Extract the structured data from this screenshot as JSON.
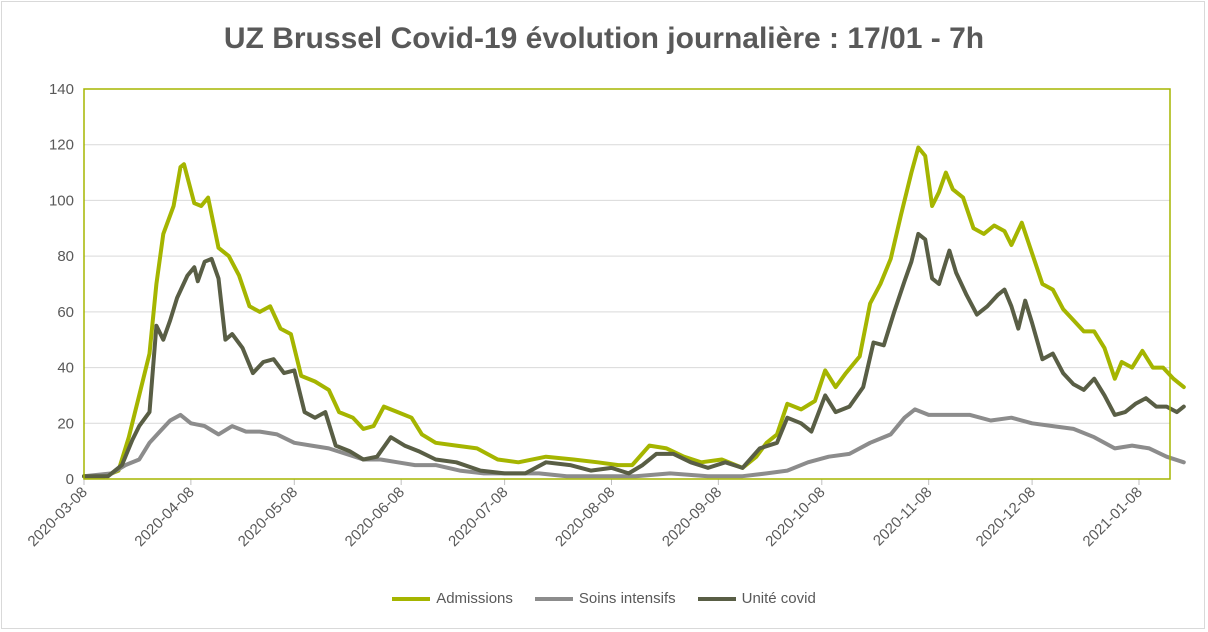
{
  "chart_data": {
    "type": "line",
    "title": "UZ Brussel Covid-19 évolution journalière : 17/01 - 7h",
    "xlabel": "",
    "ylabel": "",
    "ylim": [
      0,
      140
    ],
    "yticks": [
      "0",
      "20",
      "40",
      "60",
      "80",
      "100",
      "120",
      "140"
    ],
    "x_range": [
      "2020-03-08",
      "2021-01-17"
    ],
    "x_ticks": [
      "2020-03-08",
      "2020-04-08",
      "2020-05-08",
      "2020-06-08",
      "2020-07-08",
      "2020-08-08",
      "2020-09-08",
      "2020-10-08",
      "2020-11-08",
      "2020-12-08",
      "2021-01-08"
    ],
    "grid": "horizontal",
    "legend_position": "bottom",
    "colors": {
      "plot_border": "#a5b500",
      "grid": "#d9d9d9"
    },
    "series": [
      {
        "name": "Admissions",
        "color": "#a5b500",
        "points": [
          [
            "2020-03-08",
            1
          ],
          [
            "2020-03-14",
            1
          ],
          [
            "2020-03-18",
            3
          ],
          [
            "2020-03-21",
            15
          ],
          [
            "2020-03-24",
            30
          ],
          [
            "2020-03-27",
            45
          ],
          [
            "2020-03-29",
            70
          ],
          [
            "2020-03-31",
            88
          ],
          [
            "2020-04-03",
            98
          ],
          [
            "2020-04-05",
            112
          ],
          [
            "2020-04-06",
            113
          ],
          [
            "2020-04-09",
            99
          ],
          [
            "2020-04-11",
            98
          ],
          [
            "2020-04-13",
            101
          ],
          [
            "2020-04-16",
            83
          ],
          [
            "2020-04-19",
            80
          ],
          [
            "2020-04-22",
            73
          ],
          [
            "2020-04-25",
            62
          ],
          [
            "2020-04-28",
            60
          ],
          [
            "2020-05-01",
            62
          ],
          [
            "2020-05-04",
            54
          ],
          [
            "2020-05-07",
            52
          ],
          [
            "2020-05-10",
            37
          ],
          [
            "2020-05-14",
            35
          ],
          [
            "2020-05-18",
            32
          ],
          [
            "2020-05-21",
            24
          ],
          [
            "2020-05-25",
            22
          ],
          [
            "2020-05-28",
            18
          ],
          [
            "2020-05-31",
            19
          ],
          [
            "2020-06-03",
            26
          ],
          [
            "2020-06-07",
            24
          ],
          [
            "2020-06-11",
            22
          ],
          [
            "2020-06-14",
            16
          ],
          [
            "2020-06-18",
            13
          ],
          [
            "2020-06-24",
            12
          ],
          [
            "2020-06-30",
            11
          ],
          [
            "2020-07-06",
            7
          ],
          [
            "2020-07-12",
            6
          ],
          [
            "2020-07-20",
            8
          ],
          [
            "2020-07-28",
            7
          ],
          [
            "2020-08-04",
            6
          ],
          [
            "2020-08-10",
            5
          ],
          [
            "2020-08-14",
            5
          ],
          [
            "2020-08-19",
            12
          ],
          [
            "2020-08-24",
            11
          ],
          [
            "2020-08-29",
            8
          ],
          [
            "2020-09-03",
            6
          ],
          [
            "2020-09-09",
            7
          ],
          [
            "2020-09-15",
            4
          ],
          [
            "2020-09-19",
            8
          ],
          [
            "2020-09-22",
            13
          ],
          [
            "2020-09-25",
            16
          ],
          [
            "2020-09-28",
            27
          ],
          [
            "2020-10-02",
            25
          ],
          [
            "2020-10-06",
            28
          ],
          [
            "2020-10-09",
            39
          ],
          [
            "2020-10-12",
            33
          ],
          [
            "2020-10-15",
            38
          ],
          [
            "2020-10-19",
            44
          ],
          [
            "2020-10-22",
            63
          ],
          [
            "2020-10-25",
            70
          ],
          [
            "2020-10-28",
            79
          ],
          [
            "2020-10-31",
            95
          ],
          [
            "2020-11-03",
            110
          ],
          [
            "2020-11-05",
            119
          ],
          [
            "2020-11-07",
            116
          ],
          [
            "2020-11-09",
            98
          ],
          [
            "2020-11-11",
            103
          ],
          [
            "2020-11-13",
            110
          ],
          [
            "2020-11-15",
            104
          ],
          [
            "2020-11-18",
            101
          ],
          [
            "2020-11-21",
            90
          ],
          [
            "2020-11-24",
            88
          ],
          [
            "2020-11-27",
            91
          ],
          [
            "2020-11-30",
            89
          ],
          [
            "2020-12-02",
            84
          ],
          [
            "2020-12-05",
            92
          ],
          [
            "2020-12-08",
            81
          ],
          [
            "2020-12-11",
            70
          ],
          [
            "2020-12-14",
            68
          ],
          [
            "2020-12-17",
            61
          ],
          [
            "2020-12-20",
            57
          ],
          [
            "2020-12-23",
            53
          ],
          [
            "2020-12-26",
            53
          ],
          [
            "2020-12-29",
            47
          ],
          [
            "2021-01-01",
            36
          ],
          [
            "2021-01-03",
            42
          ],
          [
            "2021-01-06",
            40
          ],
          [
            "2021-01-09",
            46
          ],
          [
            "2021-01-12",
            40
          ],
          [
            "2021-01-15",
            40
          ],
          [
            "2021-01-18",
            36
          ],
          [
            "2021-01-21",
            33
          ]
        ]
      },
      {
        "name": "Soins intensifs",
        "color": "#8c8c8c",
        "points": [
          [
            "2020-03-08",
            1
          ],
          [
            "2020-03-16",
            2
          ],
          [
            "2020-03-20",
            5
          ],
          [
            "2020-03-24",
            7
          ],
          [
            "2020-03-27",
            13
          ],
          [
            "2020-03-30",
            17
          ],
          [
            "2020-04-02",
            21
          ],
          [
            "2020-04-05",
            23
          ],
          [
            "2020-04-08",
            20
          ],
          [
            "2020-04-12",
            19
          ],
          [
            "2020-04-16",
            16
          ],
          [
            "2020-04-20",
            19
          ],
          [
            "2020-04-24",
            17
          ],
          [
            "2020-04-28",
            17
          ],
          [
            "2020-05-03",
            16
          ],
          [
            "2020-05-08",
            13
          ],
          [
            "2020-05-13",
            12
          ],
          [
            "2020-05-18",
            11
          ],
          [
            "2020-05-23",
            9
          ],
          [
            "2020-05-28",
            7
          ],
          [
            "2020-06-02",
            7
          ],
          [
            "2020-06-07",
            6
          ],
          [
            "2020-06-12",
            5
          ],
          [
            "2020-06-18",
            5
          ],
          [
            "2020-06-25",
            3
          ],
          [
            "2020-07-02",
            2
          ],
          [
            "2020-07-10",
            2
          ],
          [
            "2020-07-18",
            2
          ],
          [
            "2020-07-26",
            1
          ],
          [
            "2020-08-05",
            1
          ],
          [
            "2020-08-15",
            1
          ],
          [
            "2020-08-25",
            2
          ],
          [
            "2020-09-05",
            1
          ],
          [
            "2020-09-15",
            1
          ],
          [
            "2020-09-22",
            2
          ],
          [
            "2020-09-28",
            3
          ],
          [
            "2020-10-04",
            6
          ],
          [
            "2020-10-10",
            8
          ],
          [
            "2020-10-16",
            9
          ],
          [
            "2020-10-22",
            13
          ],
          [
            "2020-10-28",
            16
          ],
          [
            "2020-11-01",
            22
          ],
          [
            "2020-11-04",
            25
          ],
          [
            "2020-11-08",
            23
          ],
          [
            "2020-11-14",
            23
          ],
          [
            "2020-11-20",
            23
          ],
          [
            "2020-11-26",
            21
          ],
          [
            "2020-12-02",
            22
          ],
          [
            "2020-12-08",
            20
          ],
          [
            "2020-12-14",
            19
          ],
          [
            "2020-12-20",
            18
          ],
          [
            "2020-12-26",
            15
          ],
          [
            "2021-01-01",
            11
          ],
          [
            "2021-01-06",
            12
          ],
          [
            "2021-01-11",
            11
          ],
          [
            "2021-01-16",
            8
          ],
          [
            "2021-01-21",
            6
          ]
        ]
      },
      {
        "name": "Unité covid",
        "color": "#595e45",
        "points": [
          [
            "2020-03-08",
            1
          ],
          [
            "2020-03-15",
            1
          ],
          [
            "2020-03-19",
            5
          ],
          [
            "2020-03-22",
            14
          ],
          [
            "2020-03-24",
            19
          ],
          [
            "2020-03-27",
            24
          ],
          [
            "2020-03-29",
            55
          ],
          [
            "2020-03-31",
            50
          ],
          [
            "2020-04-02",
            57
          ],
          [
            "2020-04-04",
            65
          ],
          [
            "2020-04-07",
            73
          ],
          [
            "2020-04-09",
            76
          ],
          [
            "2020-04-10",
            71
          ],
          [
            "2020-04-12",
            78
          ],
          [
            "2020-04-14",
            79
          ],
          [
            "2020-04-16",
            72
          ],
          [
            "2020-04-18",
            50
          ],
          [
            "2020-04-20",
            52
          ],
          [
            "2020-04-23",
            47
          ],
          [
            "2020-04-26",
            38
          ],
          [
            "2020-04-29",
            42
          ],
          [
            "2020-05-02",
            43
          ],
          [
            "2020-05-05",
            38
          ],
          [
            "2020-05-08",
            39
          ],
          [
            "2020-05-11",
            24
          ],
          [
            "2020-05-14",
            22
          ],
          [
            "2020-05-17",
            24
          ],
          [
            "2020-05-20",
            12
          ],
          [
            "2020-05-24",
            10
          ],
          [
            "2020-05-28",
            7
          ],
          [
            "2020-06-01",
            8
          ],
          [
            "2020-06-05",
            15
          ],
          [
            "2020-06-09",
            12
          ],
          [
            "2020-06-13",
            10
          ],
          [
            "2020-06-18",
            7
          ],
          [
            "2020-06-24",
            6
          ],
          [
            "2020-07-01",
            3
          ],
          [
            "2020-07-08",
            2
          ],
          [
            "2020-07-14",
            2
          ],
          [
            "2020-07-20",
            6
          ],
          [
            "2020-07-27",
            5
          ],
          [
            "2020-08-02",
            3
          ],
          [
            "2020-08-08",
            4
          ],
          [
            "2020-08-13",
            2
          ],
          [
            "2020-08-17",
            5
          ],
          [
            "2020-08-21",
            9
          ],
          [
            "2020-08-26",
            9
          ],
          [
            "2020-08-31",
            6
          ],
          [
            "2020-09-05",
            4
          ],
          [
            "2020-09-10",
            6
          ],
          [
            "2020-09-15",
            4
          ],
          [
            "2020-09-20",
            11
          ],
          [
            "2020-09-25",
            13
          ],
          [
            "2020-09-28",
            22
          ],
          [
            "2020-10-02",
            20
          ],
          [
            "2020-10-05",
            17
          ],
          [
            "2020-10-09",
            30
          ],
          [
            "2020-10-12",
            24
          ],
          [
            "2020-10-16",
            26
          ],
          [
            "2020-10-20",
            33
          ],
          [
            "2020-10-23",
            49
          ],
          [
            "2020-10-26",
            48
          ],
          [
            "2020-10-29",
            60
          ],
          [
            "2020-11-01",
            71
          ],
          [
            "2020-11-03",
            78
          ],
          [
            "2020-11-05",
            88
          ],
          [
            "2020-11-07",
            86
          ],
          [
            "2020-11-09",
            72
          ],
          [
            "2020-11-11",
            70
          ],
          [
            "2020-11-13",
            78
          ],
          [
            "2020-11-14",
            82
          ],
          [
            "2020-11-16",
            74
          ],
          [
            "2020-11-19",
            66
          ],
          [
            "2020-11-22",
            59
          ],
          [
            "2020-11-25",
            62
          ],
          [
            "2020-11-28",
            66
          ],
          [
            "2020-11-30",
            68
          ],
          [
            "2020-12-02",
            62
          ],
          [
            "2020-12-04",
            54
          ],
          [
            "2020-12-06",
            64
          ],
          [
            "2020-12-08",
            56
          ],
          [
            "2020-12-11",
            43
          ],
          [
            "2020-12-14",
            45
          ],
          [
            "2020-12-17",
            38
          ],
          [
            "2020-12-20",
            34
          ],
          [
            "2020-12-23",
            32
          ],
          [
            "2020-12-26",
            36
          ],
          [
            "2020-12-29",
            30
          ],
          [
            "2021-01-01",
            23
          ],
          [
            "2021-01-04",
            24
          ],
          [
            "2021-01-07",
            27
          ],
          [
            "2021-01-10",
            29
          ],
          [
            "2021-01-13",
            26
          ],
          [
            "2021-01-16",
            26
          ],
          [
            "2021-01-19",
            24
          ],
          [
            "2021-01-21",
            26
          ]
        ]
      }
    ]
  }
}
